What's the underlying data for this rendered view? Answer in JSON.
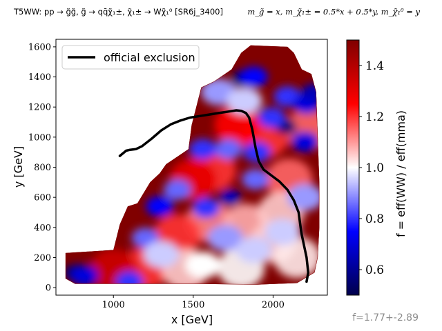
{
  "header": {
    "left_text": "T5WW: pp → g̃g̃, g̃ → qq̄χ̃₁±, χ̃₁± → Wχ̃₁⁰ [SR6j_3400]",
    "right_text": "m_g̃ = x, m_χ̃₁± = 0.5*x + 0.5*y, m_χ̃₁⁰ = y"
  },
  "footer": {
    "text": "f=1.77+-2.89"
  },
  "chart_data": {
    "type": "heatmap",
    "xlabel": "x [GeV]",
    "ylabel": "y [GeV]",
    "xlim": [
      640,
      2340
    ],
    "ylim": [
      -50,
      1650
    ],
    "xticks": [
      1000,
      1500,
      2000
    ],
    "yticks": [
      0,
      200,
      400,
      600,
      800,
      1000,
      1200,
      1400,
      1600
    ],
    "colorbar": {
      "label": "f = eff(WW) / eff(mma)",
      "range": [
        0.5,
        1.5
      ],
      "ticks": [
        "0.6",
        "0.8",
        "1.0",
        "1.2",
        "1.4"
      ],
      "tick_values": [
        0.6,
        0.8,
        1.0,
        1.2,
        1.4
      ],
      "colormap": "seismic",
      "colors": [
        "#00004c",
        "#0000ff",
        "#ffffff",
        "#ff0000",
        "#800000"
      ]
    },
    "legend": {
      "placement": "upper-left",
      "entries": [
        "official exclusion"
      ]
    },
    "grid": false,
    "region": {
      "boundary": [
        [
          700,
          230
        ],
        [
          1000,
          250
        ],
        [
          1040,
          420
        ],
        [
          1090,
          540
        ],
        [
          1150,
          560
        ],
        [
          1230,
          700
        ],
        [
          1290,
          760
        ],
        [
          1330,
          820
        ],
        [
          1400,
          870
        ],
        [
          1470,
          920
        ],
        [
          1490,
          1080
        ],
        [
          1550,
          1330
        ],
        [
          1630,
          1370
        ],
        [
          1740,
          1450
        ],
        [
          1800,
          1560
        ],
        [
          1860,
          1610
        ],
        [
          2090,
          1600
        ],
        [
          2130,
          1560
        ],
        [
          2180,
          1450
        ],
        [
          2240,
          1420
        ],
        [
          2270,
          1300
        ],
        [
          2280,
          1000
        ],
        [
          2290,
          700
        ],
        [
          2290,
          400
        ],
        [
          2280,
          200
        ],
        [
          2260,
          100
        ],
        [
          2150,
          30
        ],
        [
          1900,
          20
        ],
        [
          1500,
          25
        ],
        [
          1000,
          25
        ],
        [
          760,
          25
        ],
        [
          700,
          60
        ]
      ]
    },
    "blobs": [
      {
        "x": 1810,
        "y": 1390,
        "v": 0.55
      },
      {
        "x": 1880,
        "y": 1400,
        "v": 0.75
      },
      {
        "x": 2090,
        "y": 1270,
        "v": 0.8
      },
      {
        "x": 2210,
        "y": 1220,
        "v": 0.7
      },
      {
        "x": 2250,
        "y": 1300,
        "v": 0.65
      },
      {
        "x": 2080,
        "y": 1070,
        "v": 0.55
      },
      {
        "x": 2200,
        "y": 970,
        "v": 0.7
      },
      {
        "x": 1660,
        "y": 1300,
        "v": 0.9
      },
      {
        "x": 1820,
        "y": 1240,
        "v": 0.95
      },
      {
        "x": 1990,
        "y": 1130,
        "v": 0.8
      },
      {
        "x": 1720,
        "y": 920,
        "v": 0.85
      },
      {
        "x": 1900,
        "y": 900,
        "v": 0.8
      },
      {
        "x": 1560,
        "y": 920,
        "v": 0.8
      },
      {
        "x": 1890,
        "y": 720,
        "v": 0.85
      },
      {
        "x": 1730,
        "y": 600,
        "v": 0.65
      },
      {
        "x": 1400,
        "y": 650,
        "v": 0.85
      },
      {
        "x": 1290,
        "y": 540,
        "v": 0.75
      },
      {
        "x": 1580,
        "y": 530,
        "v": 0.8
      },
      {
        "x": 1200,
        "y": 330,
        "v": 0.85
      },
      {
        "x": 2060,
        "y": 370,
        "v": 0.95
      },
      {
        "x": 2200,
        "y": 600,
        "v": 0.9
      },
      {
        "x": 1700,
        "y": 330,
        "v": 0.9
      },
      {
        "x": 1300,
        "y": 220,
        "v": 0.95
      },
      {
        "x": 760,
        "y": 100,
        "v": 0.55
      },
      {
        "x": 820,
        "y": 80,
        "v": 0.7
      },
      {
        "x": 1100,
        "y": 40,
        "v": 0.8
      },
      {
        "x": 1880,
        "y": 250,
        "v": 0.95
      },
      {
        "x": 1560,
        "y": 150,
        "v": 1.0
      }
    ],
    "red_zones": [
      {
        "x": 1600,
        "y": 440,
        "v": 1.12
      },
      {
        "x": 1830,
        "y": 420,
        "v": 1.08
      },
      {
        "x": 2000,
        "y": 300,
        "v": 1.05
      },
      {
        "x": 2100,
        "y": 720,
        "v": 1.15
      },
      {
        "x": 1400,
        "y": 350,
        "v": 1.2
      },
      {
        "x": 1200,
        "y": 130,
        "v": 1.2
      },
      {
        "x": 1000,
        "y": 120,
        "v": 1.35
      },
      {
        "x": 1450,
        "y": 120,
        "v": 1.05
      },
      {
        "x": 1800,
        "y": 130,
        "v": 1.0
      },
      {
        "x": 2150,
        "y": 200,
        "v": 1.02
      },
      {
        "x": 2220,
        "y": 1050,
        "v": 1.15
      },
      {
        "x": 1950,
        "y": 1000,
        "v": 1.2
      },
      {
        "x": 1780,
        "y": 1080,
        "v": 1.25
      },
      {
        "x": 1620,
        "y": 780,
        "v": 1.2
      },
      {
        "x": 1500,
        "y": 720,
        "v": 1.3
      },
      {
        "x": 2050,
        "y": 500,
        "v": 1.05
      }
    ],
    "series": [
      {
        "name": "official exclusion",
        "color": "#000000",
        "x": [
          1040,
          1080,
          1100,
          1140,
          1180,
          1240,
          1300,
          1360,
          1420,
          1480,
          1540,
          1600,
          1660,
          1720,
          1770,
          1800,
          1830,
          1850,
          1860,
          1870,
          1880,
          1890,
          1910,
          1940,
          1990,
          2040,
          2090,
          2130,
          2160,
          2170,
          2175,
          2180,
          2190,
          2200,
          2210,
          2215,
          2220,
          2210
        ],
        "y": [
          875,
          910,
          915,
          920,
          940,
          990,
          1045,
          1085,
          1110,
          1130,
          1140,
          1150,
          1160,
          1170,
          1178,
          1175,
          1160,
          1130,
          1090,
          1050,
          990,
          930,
          840,
          785,
          745,
          705,
          650,
          580,
          500,
          420,
          380,
          350,
          300,
          250,
          200,
          150,
          100,
          40
        ]
      }
    ]
  }
}
